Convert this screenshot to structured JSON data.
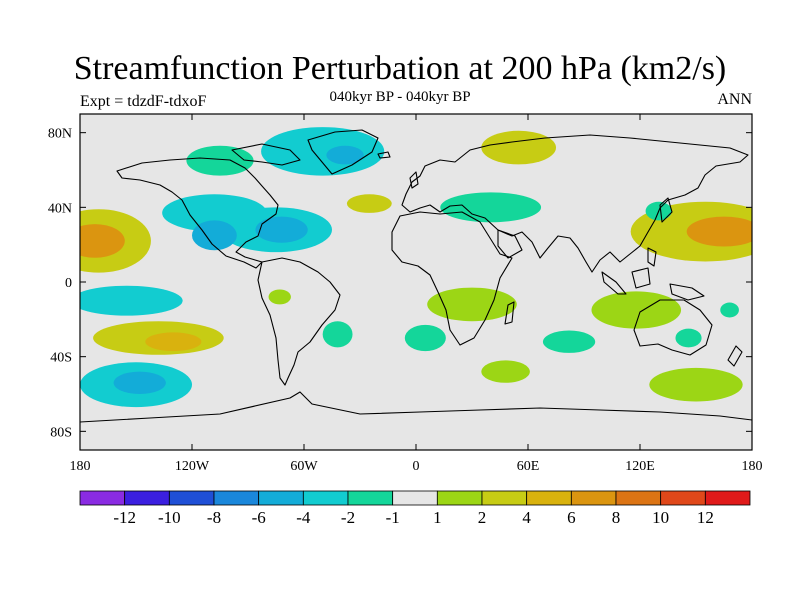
{
  "title": "Streamfunction Perturbation at 200 hPa (km2/s)",
  "subtitle": "040kyr BP - 040kyr BP",
  "experiment_label": "Expt = tdzdF-tdxoF",
  "season_label": "ANN",
  "map": {
    "projection": "cylindrical-equidistant",
    "lon_range": [
      -180,
      180
    ],
    "lat_range": [
      -90,
      90
    ],
    "ocean_background": "#e6e6e6",
    "coastline_color": "#000000"
  },
  "axes": {
    "x_ticks": [
      {
        "lon": -180,
        "label": "180"
      },
      {
        "lon": -120,
        "label": "120W"
      },
      {
        "lon": -60,
        "label": "60W"
      },
      {
        "lon": 0,
        "label": "0"
      },
      {
        "lon": 60,
        "label": "60E"
      },
      {
        "lon": 120,
        "label": "120E"
      },
      {
        "lon": 180,
        "label": "180"
      }
    ],
    "y_ticks": [
      {
        "lat": 80,
        "label": "80N"
      },
      {
        "lat": 40,
        "label": "40N"
      },
      {
        "lat": 0,
        "label": "0"
      },
      {
        "lat": -40,
        "label": "40S"
      },
      {
        "lat": -80,
        "label": "80S"
      }
    ]
  },
  "colorbar": {
    "colors": [
      "#8a2be2",
      "#3b1fe0",
      "#1f4fd6",
      "#1a87db",
      "#13acd8",
      "#12ccd0",
      "#14d69a",
      "#e6e6e6",
      "#9cd615",
      "#c7cc14",
      "#d9b20e",
      "#db9510",
      "#dc7414",
      "#e0481a",
      "#e01a1a"
    ],
    "labels": [
      "-12",
      "-10",
      "-8",
      "-6",
      "-4",
      "-2",
      "-1",
      "1",
      "2",
      "4",
      "6",
      "8",
      "10",
      "12"
    ]
  },
  "chart_data": {
    "type": "contour-map",
    "title": "Streamfunction Perturbation at 200 hPa (km2/s)",
    "units": "km2/s",
    "levels": [
      -12,
      -10,
      -8,
      -6,
      -4,
      -2,
      -1,
      1,
      2,
      4,
      6,
      8,
      10,
      12
    ],
    "anomalies": [
      {
        "lon": -50,
        "lat": 70,
        "rlon": 33,
        "rlat": 13,
        "value": -2.5
      },
      {
        "lon": -38,
        "lat": 68,
        "rlon": 10,
        "rlat": 5,
        "value": -4.5
      },
      {
        "lon": -105,
        "lat": 65,
        "rlon": 18,
        "rlat": 8,
        "value": -1.5
      },
      {
        "lon": 55,
        "lat": 72,
        "rlon": 20,
        "rlat": 9,
        "value": 2.5
      },
      {
        "lon": 40,
        "lat": 40,
        "rlon": 27,
        "rlat": 8,
        "value": -1.5
      },
      {
        "lon": -25,
        "lat": 42,
        "rlon": 12,
        "rlat": 5,
        "value": 2.5
      },
      {
        "lon": -108,
        "lat": 37,
        "rlon": 28,
        "rlat": 10,
        "value": -2.5
      },
      {
        "lon": -75,
        "lat": 28,
        "rlon": 30,
        "rlat": 12,
        "value": -2.5
      },
      {
        "lon": -108,
        "lat": 25,
        "rlon": 12,
        "rlat": 8,
        "value": -4.5
      },
      {
        "lon": -72,
        "lat": 28,
        "rlon": 14,
        "rlat": 7,
        "value": -4.5
      },
      {
        "lon": -170,
        "lat": 22,
        "rlon": 28,
        "rlat": 17,
        "value": 3.5
      },
      {
        "lon": -172,
        "lat": 22,
        "rlon": 16,
        "rlat": 9,
        "value": 6.5
      },
      {
        "lon": 155,
        "lat": 27,
        "rlon": 40,
        "rlat": 16,
        "value": 3.5
      },
      {
        "lon": 165,
        "lat": 27,
        "rlon": 20,
        "rlat": 8,
        "value": 6.5
      },
      {
        "lon": 130,
        "lat": 38,
        "rlon": 7,
        "rlat": 5,
        "value": -1.5
      },
      {
        "lon": -155,
        "lat": -10,
        "rlon": 30,
        "rlat": 8,
        "value": -2.5
      },
      {
        "lon": -138,
        "lat": -30,
        "rlon": 35,
        "rlat": 9,
        "value": 2.5
      },
      {
        "lon": -130,
        "lat": -32,
        "rlon": 15,
        "rlat": 5,
        "value": 4.5
      },
      {
        "lon": -150,
        "lat": -55,
        "rlon": 30,
        "rlat": 12,
        "value": -2.5
      },
      {
        "lon": -148,
        "lat": -54,
        "rlon": 14,
        "rlat": 6,
        "value": -4.5
      },
      {
        "lon": -73,
        "lat": -8,
        "rlon": 6,
        "rlat": 4,
        "value": 1.5
      },
      {
        "lon": -42,
        "lat": -28,
        "rlon": 8,
        "rlat": 7,
        "value": -1.5
      },
      {
        "lon": 5,
        "lat": -30,
        "rlon": 11,
        "rlat": 7,
        "value": -1.5
      },
      {
        "lon": 30,
        "lat": -12,
        "rlon": 24,
        "rlat": 9,
        "value": 1.5
      },
      {
        "lon": 82,
        "lat": -32,
        "rlon": 14,
        "rlat": 6,
        "value": -1.5
      },
      {
        "lon": 118,
        "lat": -15,
        "rlon": 24,
        "rlat": 10,
        "value": 1.5
      },
      {
        "lon": 146,
        "lat": -30,
        "rlon": 7,
        "rlat": 5,
        "value": -1.5
      },
      {
        "lon": 48,
        "lat": -48,
        "rlon": 13,
        "rlat": 6,
        "value": 1.5
      },
      {
        "lon": 150,
        "lat": -55,
        "rlon": 25,
        "rlat": 9,
        "value": 1.5
      },
      {
        "lon": 168,
        "lat": -15,
        "rlon": 5,
        "rlat": 4,
        "value": -1.5
      }
    ]
  }
}
